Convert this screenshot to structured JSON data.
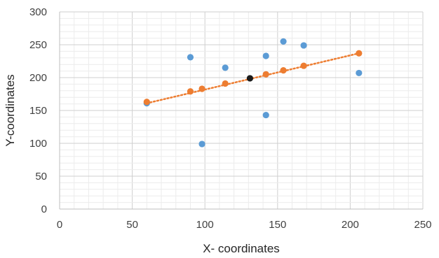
{
  "chart_data": {
    "type": "scatter",
    "title": "",
    "xlabel": "X- coordinates",
    "ylabel": "Y-coordinates",
    "xlim": [
      0,
      250
    ],
    "ylim": [
      0,
      300
    ],
    "x_ticks": [
      0,
      50,
      100,
      150,
      200,
      250
    ],
    "y_ticks": [
      0,
      50,
      100,
      150,
      200,
      250,
      300
    ],
    "grid": "major and minor",
    "series": [
      {
        "color": "#5B9BD5",
        "points": [
          {
            "x": 60,
            "y": 161
          },
          {
            "x": 90,
            "y": 231
          },
          {
            "x": 98,
            "y": 99
          },
          {
            "x": 114,
            "y": 215
          },
          {
            "x": 142,
            "y": 233
          },
          {
            "x": 142,
            "y": 143
          },
          {
            "x": 154,
            "y": 255
          },
          {
            "x": 168,
            "y": 249
          },
          {
            "x": 206,
            "y": 207
          }
        ]
      },
      {
        "color": "#ED7D31",
        "points": [
          {
            "x": 60,
            "y": 163
          },
          {
            "x": 90,
            "y": 179
          },
          {
            "x": 98,
            "y": 183
          },
          {
            "x": 114,
            "y": 191
          },
          {
            "x": 142,
            "y": 205
          },
          {
            "x": 154,
            "y": 211
          },
          {
            "x": 168,
            "y": 218
          },
          {
            "x": 206,
            "y": 237
          }
        ]
      },
      {
        "color": "#1A1A1A",
        "points": [
          {
            "x": 131,
            "y": 199
          }
        ]
      }
    ],
    "trendline": {
      "color": "#ED7D31",
      "style": "dotted",
      "from": {
        "x": 60,
        "y": 161
      },
      "to": {
        "x": 206,
        "y": 237
      }
    }
  }
}
